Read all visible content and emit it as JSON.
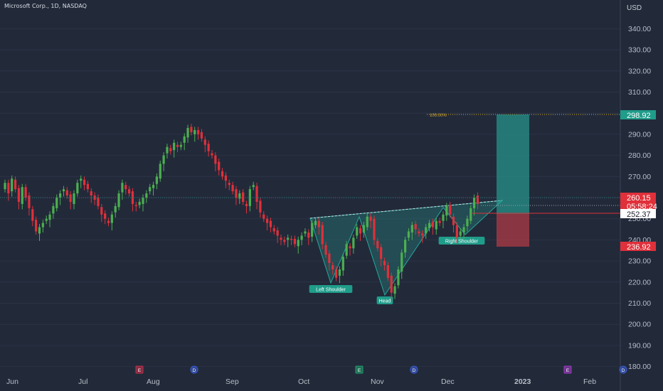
{
  "header": {
    "title": "Microsoft Corp., 1D, NASDAQ",
    "currency": "USD"
  },
  "price_axis": {
    "labels": [
      "340.00",
      "330.00",
      "320.00",
      "310.00",
      "300.00",
      "290.00",
      "280.00",
      "270.00",
      "260.00",
      "250.00",
      "240.00",
      "230.00",
      "220.00",
      "210.00",
      "200.00",
      "190.00",
      "180.00"
    ]
  },
  "time_axis": {
    "labels": [
      "Jun",
      "Jul",
      "Aug",
      "Sep",
      "Oct",
      "Nov",
      "Dec",
      "2023",
      "Feb"
    ]
  },
  "price_tags": {
    "target": "298.92",
    "last": "260.15",
    "countdown": "05:58:24",
    "entry": "252.37",
    "stop": "236.92"
  },
  "annotations": {
    "left_shoulder": "Left Shoulder",
    "head": "Head",
    "right_shoulder": "Right Shoulder",
    "fib_level": "100.00%"
  },
  "event_markers": [
    {
      "letter": "E",
      "kind": "earnings"
    },
    {
      "letter": "D",
      "kind": "dividend"
    },
    {
      "letter": "E",
      "kind": "earnings"
    },
    {
      "letter": "D",
      "kind": "dividend"
    },
    {
      "letter": "E",
      "kind": "earnings"
    },
    {
      "letter": "D",
      "kind": "dividend"
    }
  ],
  "colors": {
    "background": "#222a3a",
    "up": "#4caf50",
    "down": "#e0303a",
    "target_zone": "#26a69a",
    "stop_zone": "#e04048",
    "pattern_fill": "#26a69a"
  },
  "chart_data": {
    "type": "candlestick",
    "ylim": [
      180,
      340
    ],
    "closes": [
      267,
      262,
      269,
      264,
      258,
      265,
      260,
      255,
      249,
      244,
      246,
      248,
      250,
      252,
      256,
      260,
      262,
      264,
      261,
      258,
      262,
      267,
      269,
      266,
      264,
      261,
      259,
      256,
      252,
      250,
      248,
      252,
      256,
      262,
      267,
      264,
      262,
      257,
      256,
      258,
      260,
      262,
      265,
      266,
      270,
      276,
      280,
      284,
      282,
      286,
      284,
      285,
      289,
      293,
      291,
      292,
      290,
      288,
      285,
      282,
      280,
      276,
      273,
      270,
      268,
      266,
      263,
      260,
      262,
      258,
      256,
      264,
      266,
      258,
      253,
      250,
      248,
      246,
      244,
      242,
      240,
      239,
      241,
      240,
      238,
      240,
      242,
      244,
      241,
      248,
      249,
      246,
      238,
      233,
      229,
      226,
      222,
      226,
      232,
      238,
      236,
      241,
      246,
      243,
      247,
      251,
      249,
      240,
      236,
      231,
      228,
      222,
      215,
      218,
      226,
      234,
      240,
      244,
      247,
      245,
      243,
      242,
      246,
      248,
      246,
      249,
      248,
      252,
      256,
      252,
      247,
      241,
      244,
      246,
      250,
      255,
      260,
      257
    ]
  }
}
